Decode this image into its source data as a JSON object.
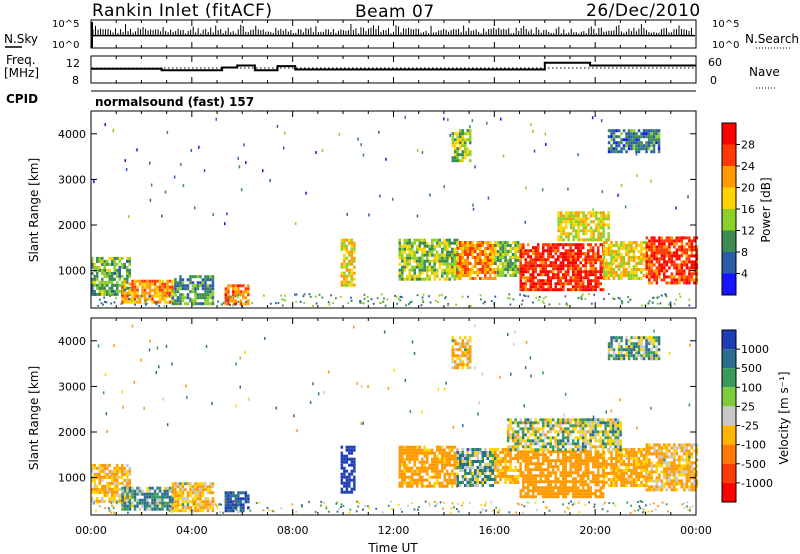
{
  "header": {
    "title": "Rankin Inlet (fitACF)",
    "beam": "Beam 07",
    "date": "26/Dec/2010"
  },
  "sky_panel": {
    "left_label": "N.Sky",
    "right_label": "N.Search",
    "y_ticks_left": [
      "10^5",
      "10^0"
    ],
    "y_ticks_right": [
      "10^5",
      "10^0"
    ]
  },
  "freq_panel": {
    "left_label_line1": "Freq.",
    "left_label_line2": "[MHz]",
    "right_label": "Nave",
    "y_ticks_left": [
      "12",
      "8"
    ],
    "y_ticks_right": [
      "60",
      "0"
    ]
  },
  "cpid": {
    "label": "CPID",
    "program": "normalsound (fast) 157"
  },
  "x_axis": {
    "label": "Time UT",
    "ticks": [
      "00:00",
      "04:00",
      "08:00",
      "12:00",
      "16:00",
      "20:00",
      "00:00"
    ]
  },
  "power_panel": {
    "ylabel": "Slant Range [km]",
    "y_ticks": [
      "4000",
      "3000",
      "2000",
      "1000"
    ],
    "colorbar_label": "Power [dB]",
    "colorbar_ticks": [
      "28",
      "24",
      "20",
      "16",
      "12",
      "8",
      "4"
    ],
    "colorbar_colors": [
      "#ff0000",
      "#ff3a00",
      "#ff9a00",
      "#ffd400",
      "#8cd12a",
      "#3c8a54",
      "#2a5ca8",
      "#1414ff"
    ]
  },
  "velocity_panel": {
    "ylabel": "Slant Range [km]",
    "y_ticks": [
      "4000",
      "3000",
      "2000",
      "1000"
    ],
    "colorbar_label": "Velocity [m s⁻¹]",
    "colorbar_ticks": [
      "1000",
      "500",
      "100",
      "25",
      "-25",
      "-100",
      "-500",
      "-1000"
    ],
    "colorbar_colors": [
      "#1e3cb4",
      "#2a6e8e",
      "#3a9a5a",
      "#7ccc3c",
      "#c8c8c8",
      "#ffb400",
      "#ff7a00",
      "#ff3c00",
      "#ff0000"
    ]
  },
  "chart_data": [
    {
      "type": "line",
      "title": "N.Sky / N.Search",
      "x": [
        "00:00",
        "24:00"
      ],
      "xlim_hours": [
        0,
        24
      ],
      "scale": "log",
      "ylim_labels": [
        "10^0",
        "10^5"
      ],
      "series": [
        {
          "name": "N.Sky",
          "style": "vertical spikes, solid",
          "typical_level_fraction": 0.55
        }
      ]
    },
    {
      "type": "line",
      "title": "Freq. / Nave",
      "xlim_hours": [
        0,
        24
      ],
      "ylim_left": [
        8,
        12
      ],
      "ylim_right": [
        0,
        60
      ],
      "series": [
        {
          "name": "Freq.",
          "units": "MHz",
          "x_hours": [
            0,
            2.8,
            2.8,
            5.2,
            5.2,
            5.8,
            5.8,
            6.5,
            6.5,
            7.4,
            7.4,
            8.1,
            8.1,
            18.0,
            18.0,
            19.8,
            19.8,
            24
          ],
          "y": [
            10.1,
            10.1,
            9.9,
            9.9,
            10.3,
            10.3,
            10.6,
            10.6,
            9.9,
            9.9,
            10.5,
            10.5,
            10.0,
            10.0,
            11.0,
            11.0,
            10.6,
            10.6
          ]
        },
        {
          "name": "Nave",
          "style": "dotted",
          "value": 44
        }
      ]
    },
    {
      "type": "heatmap",
      "title": "Power",
      "xlabel": "Time UT",
      "ylabel": "Slant Range [km]",
      "xlim_hours": [
        0,
        24
      ],
      "ylim": [
        180,
        4500
      ],
      "zlabel": "Power [dB]",
      "zlim": [
        0,
        32
      ],
      "regions": [
        {
          "t": [
            0.0,
            1.5
          ],
          "r": [
            500,
            1300
          ],
          "z": 12
        },
        {
          "t": [
            1.2,
            3.2
          ],
          "r": [
            300,
            800
          ],
          "z": 22
        },
        {
          "t": [
            3.2,
            4.8
          ],
          "r": [
            300,
            900
          ],
          "z": 10
        },
        {
          "t": [
            5.3,
            6.2
          ],
          "r": [
            300,
            700
          ],
          "z": 24
        },
        {
          "t": [
            9.9,
            10.4
          ],
          "r": [
            700,
            1700
          ],
          "z": 18
        },
        {
          "t": [
            12.2,
            14.5
          ],
          "r": [
            800,
            1700
          ],
          "z": 14
        },
        {
          "t": [
            14.5,
            16.0
          ],
          "r": [
            850,
            1650
          ],
          "z": 22
        },
        {
          "t": [
            16.0,
            17.0
          ],
          "r": [
            900,
            1650
          ],
          "z": 14
        },
        {
          "t": [
            17.0,
            20.3
          ],
          "r": [
            600,
            1600
          ],
          "z": 28
        },
        {
          "t": [
            20.3,
            22.0
          ],
          "r": [
            800,
            1650
          ],
          "z": 18
        },
        {
          "t": [
            22.0,
            24.0
          ],
          "r": [
            700,
            1750
          ],
          "z": 27
        },
        {
          "t": [
            18.5,
            20.5
          ],
          "r": [
            1700,
            2300
          ],
          "z": 17
        },
        {
          "t": [
            14.3,
            15.0
          ],
          "r": [
            3400,
            4100
          ],
          "z": 14
        },
        {
          "t": [
            20.5,
            22.5
          ],
          "r": [
            3600,
            4100
          ],
          "z": 8
        }
      ]
    },
    {
      "type": "heatmap",
      "title": "Velocity",
      "xlabel": "Time UT",
      "ylabel": "Slant Range [km]",
      "xlim_hours": [
        0,
        24
      ],
      "ylim": [
        180,
        4500
      ],
      "zlabel": "Velocity [m s⁻¹]",
      "zlim": [
        -1000,
        1000
      ],
      "regions": [
        {
          "t": [
            0.0,
            1.5
          ],
          "r": [
            500,
            1300
          ],
          "z": -100
        },
        {
          "t": [
            1.2,
            3.2
          ],
          "r": [
            300,
            800
          ],
          "z": 100
        },
        {
          "t": [
            3.2,
            4.8
          ],
          "r": [
            300,
            900
          ],
          "z": -100
        },
        {
          "t": [
            5.3,
            6.2
          ],
          "r": [
            300,
            700
          ],
          "z": 500
        },
        {
          "t": [
            9.9,
            10.4
          ],
          "r": [
            700,
            1700
          ],
          "z": 1000
        },
        {
          "t": [
            12.2,
            14.5
          ],
          "r": [
            800,
            1700
          ],
          "z": -200
        },
        {
          "t": [
            14.5,
            16.0
          ],
          "r": [
            850,
            1650
          ],
          "z": 60
        },
        {
          "t": [
            16.0,
            17.0
          ],
          "r": [
            900,
            1650
          ],
          "z": -150
        },
        {
          "t": [
            17.0,
            20.3
          ],
          "r": [
            600,
            1600
          ],
          "z": -250
        },
        {
          "t": [
            20.3,
            22.0
          ],
          "r": [
            800,
            1650
          ],
          "z": -150
        },
        {
          "t": [
            22.0,
            24.0
          ],
          "r": [
            700,
            1750
          ],
          "z": -100
        },
        {
          "t": [
            16.5,
            21.0
          ],
          "r": [
            1600,
            2300
          ],
          "z": 0
        },
        {
          "t": [
            14.3,
            15.0
          ],
          "r": [
            3400,
            4100
          ],
          "z": -100
        },
        {
          "t": [
            20.5,
            22.5
          ],
          "r": [
            3600,
            4100
          ],
          "z": 50
        }
      ]
    }
  ]
}
